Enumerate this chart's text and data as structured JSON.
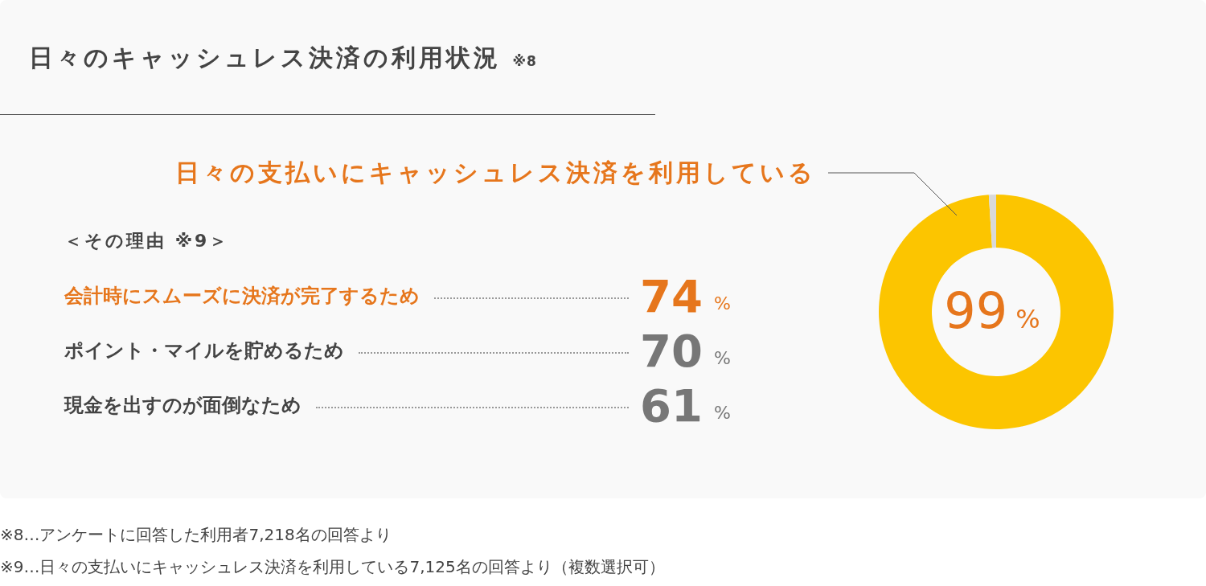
{
  "chart_data": [
    {
      "type": "donut",
      "title": "日々のキャッシュレス決済の利用状況 ※8",
      "categories": [
        "日々の支払いにキャッシュレス決済を利用している",
        null
      ],
      "values": [
        99,
        1
      ],
      "colors": [
        "#fcc500",
        "#d9d9d9"
      ],
      "value_labels": [
        "99 %",
        null
      ],
      "annotations": [
        "※8…アンケートに回答した利用者7,218名の回答より",
        "※9…日々の支払いにキャッシュレス決済を利用している7,125名の回答より（複数選択可）"
      ]
    },
    {
      "type": "other",
      "title": "＜その理由 ※9＞",
      "categories": [
        "会計時にスムーズに決済が完了するため",
        "ポイント・マイルを貯めるため",
        "現金を出すのが面倒なため"
      ],
      "values": [
        74,
        70,
        61
      ],
      "value_labels": [
        "74 %",
        "70 %",
        "61 %"
      ],
      "colors": [
        "#e6761c",
        "#777777",
        "#777777"
      ]
    }
  ]
}
